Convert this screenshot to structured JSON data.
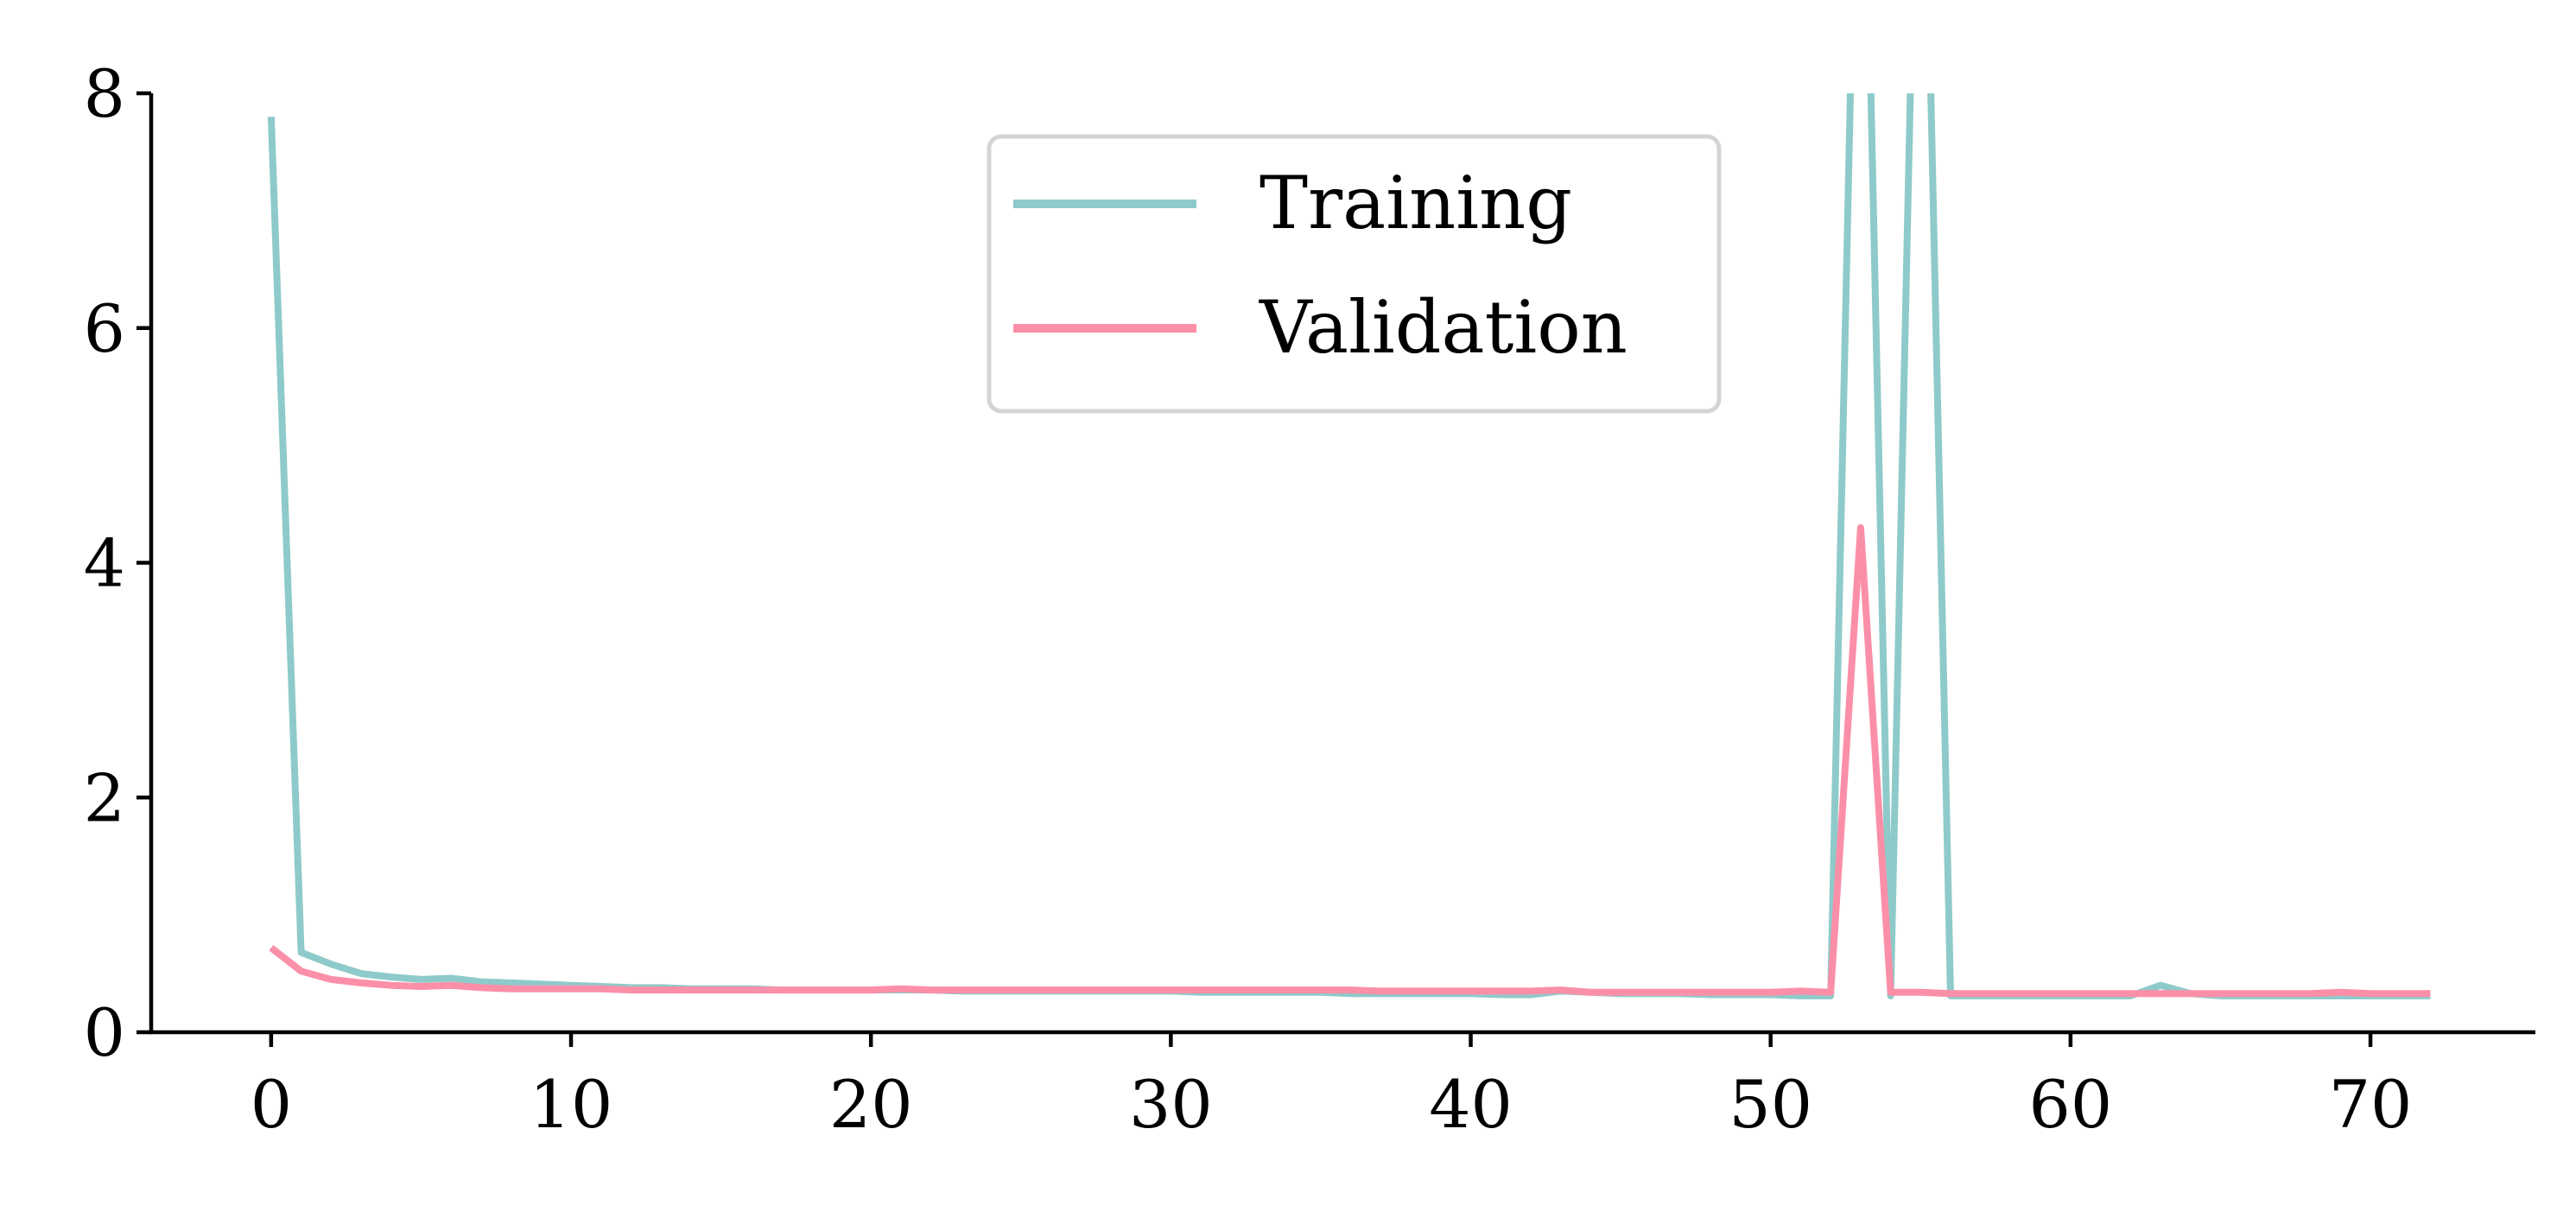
{
  "chart_data": {
    "type": "line",
    "title": "",
    "xlabel": "",
    "ylabel": "",
    "xlim": [
      -4,
      75.5
    ],
    "ylim": [
      0,
      8
    ],
    "xticks": [
      0,
      10,
      20,
      30,
      40,
      50,
      60,
      70
    ],
    "yticks": [
      0,
      2,
      4,
      6,
      8
    ],
    "grid": false,
    "legend_position": "top-center",
    "series": [
      {
        "name": "Training",
        "color": "#8fcaca",
        "x": [
          0,
          1,
          2,
          3,
          4,
          5,
          6,
          7,
          8,
          9,
          10,
          11,
          12,
          13,
          14,
          15,
          16,
          17,
          18,
          19,
          20,
          21,
          22,
          23,
          24,
          25,
          26,
          27,
          28,
          29,
          30,
          31,
          32,
          33,
          34,
          35,
          36,
          37,
          38,
          39,
          40,
          41,
          42,
          43,
          44,
          45,
          46,
          47,
          48,
          49,
          50,
          51,
          52,
          53,
          54,
          55,
          56,
          57,
          58,
          59,
          60,
          61,
          62,
          63,
          64,
          65,
          66,
          67,
          68,
          69,
          70,
          71,
          72
        ],
        "values": [
          7.8,
          0.68,
          0.58,
          0.5,
          0.47,
          0.45,
          0.46,
          0.43,
          0.42,
          0.41,
          0.4,
          0.39,
          0.38,
          0.38,
          0.37,
          0.37,
          0.37,
          0.36,
          0.36,
          0.36,
          0.36,
          0.36,
          0.36,
          0.35,
          0.35,
          0.35,
          0.35,
          0.35,
          0.35,
          0.35,
          0.35,
          0.34,
          0.34,
          0.34,
          0.34,
          0.34,
          0.33,
          0.33,
          0.33,
          0.33,
          0.33,
          0.32,
          0.32,
          0.35,
          0.34,
          0.33,
          0.33,
          0.33,
          0.32,
          0.32,
          0.32,
          0.31,
          0.31,
          12.0,
          0.31,
          12.0,
          0.31,
          0.31,
          0.31,
          0.31,
          0.31,
          0.31,
          0.31,
          0.4,
          0.33,
          0.31,
          0.31,
          0.31,
          0.31,
          0.31,
          0.31,
          0.31,
          0.31
        ]
      },
      {
        "name": "Validation",
        "color": "#fc8fa8",
        "x": [
          0,
          1,
          2,
          3,
          4,
          5,
          6,
          7,
          8,
          9,
          10,
          11,
          12,
          13,
          14,
          15,
          16,
          17,
          18,
          19,
          20,
          21,
          22,
          23,
          24,
          25,
          26,
          27,
          28,
          29,
          30,
          31,
          32,
          33,
          34,
          35,
          36,
          37,
          38,
          39,
          40,
          41,
          42,
          43,
          44,
          45,
          46,
          47,
          48,
          49,
          50,
          51,
          52,
          53,
          54,
          55,
          56,
          57,
          58,
          59,
          60,
          61,
          62,
          63,
          64,
          65,
          66,
          67,
          68,
          69,
          70,
          71,
          72
        ],
        "values": [
          0.72,
          0.52,
          0.45,
          0.42,
          0.4,
          0.39,
          0.4,
          0.38,
          0.37,
          0.37,
          0.37,
          0.37,
          0.36,
          0.36,
          0.36,
          0.36,
          0.36,
          0.36,
          0.36,
          0.36,
          0.36,
          0.37,
          0.36,
          0.36,
          0.36,
          0.36,
          0.36,
          0.36,
          0.36,
          0.36,
          0.36,
          0.36,
          0.36,
          0.36,
          0.36,
          0.36,
          0.36,
          0.35,
          0.35,
          0.35,
          0.35,
          0.35,
          0.35,
          0.36,
          0.34,
          0.34,
          0.34,
          0.34,
          0.34,
          0.34,
          0.34,
          0.35,
          0.34,
          4.3,
          0.34,
          0.34,
          0.33,
          0.33,
          0.33,
          0.33,
          0.33,
          0.33,
          0.33,
          0.33,
          0.33,
          0.33,
          0.33,
          0.33,
          0.33,
          0.34,
          0.33,
          0.33,
          0.33
        ]
      }
    ]
  }
}
